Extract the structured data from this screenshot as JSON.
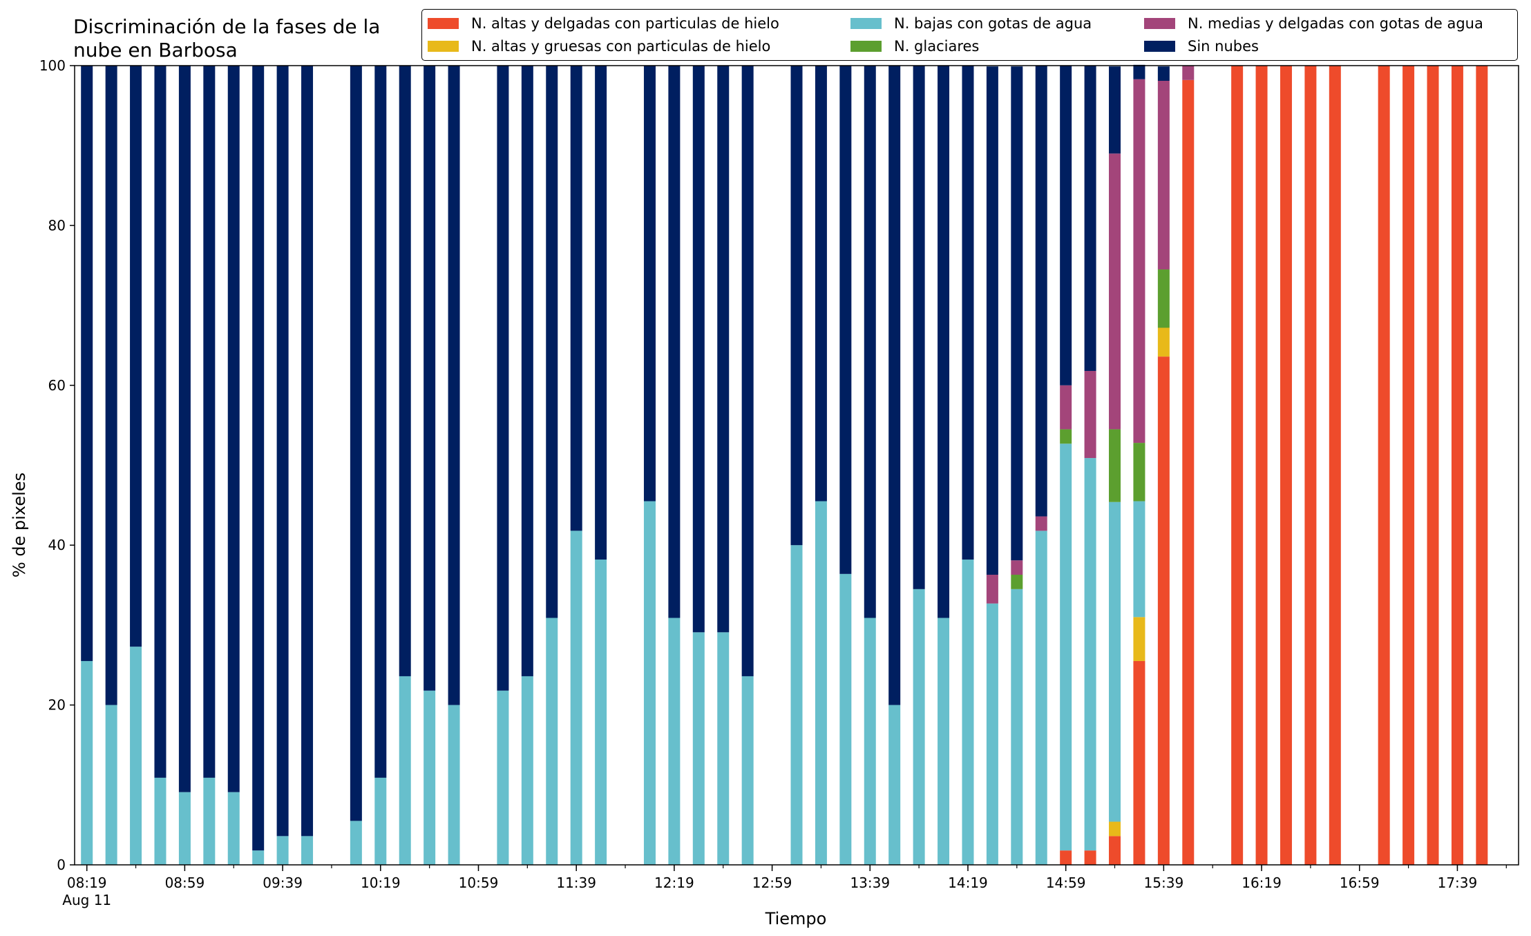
{
  "chart_data": {
    "type": "bar",
    "stacked": true,
    "title": "Discriminación de la fases de la nube en Barbosa",
    "title_lines": [
      "Discriminación de la fases de la",
      "nube en Barbosa"
    ],
    "xlabel": "Tiempo",
    "ylabel": "% de pixeles",
    "ylim": [
      0,
      100
    ],
    "yticks": [
      0,
      20,
      40,
      60,
      80,
      100
    ],
    "x_range": [
      "08:14",
      "18:04"
    ],
    "xticks": [
      "08:19",
      "08:59",
      "09:39",
      "10:19",
      "10:59",
      "11:39",
      "12:19",
      "12:59",
      "13:39",
      "14:19",
      "14:59",
      "15:39",
      "16:19",
      "16:59",
      "17:39"
    ],
    "xtick_sublabel": "Aug 11",
    "grid": false,
    "legend_position": "top-right",
    "categories": [
      "08:19",
      "08:29",
      "08:39",
      "08:49",
      "08:59",
      "09:09",
      "09:19",
      "09:29",
      "09:39",
      "09:49",
      "10:09",
      "10:19",
      "10:29",
      "10:39",
      "10:49",
      "11:09",
      "11:19",
      "11:29",
      "11:39",
      "11:49",
      "12:09",
      "12:19",
      "12:29",
      "12:39",
      "12:49",
      "13:09",
      "13:19",
      "13:29",
      "13:39",
      "13:49",
      "13:59",
      "14:09",
      "14:19",
      "14:29",
      "14:39",
      "14:49",
      "14:59",
      "15:09",
      "15:19",
      "15:29",
      "15:39",
      "15:49",
      "16:09",
      "16:19",
      "16:29",
      "16:39",
      "16:49",
      "17:09",
      "17:19",
      "17:29",
      "17:39",
      "17:49"
    ],
    "series": [
      {
        "name": "N. altas y delgadas con particulas de hielo",
        "color": "#ee4b2b",
        "values": [
          0,
          0,
          0,
          0,
          0,
          0,
          0,
          0,
          0,
          0,
          0,
          0,
          0,
          0,
          0,
          0,
          0,
          0,
          0,
          0,
          0,
          0,
          0,
          0,
          0,
          0,
          0,
          0,
          0,
          0,
          0,
          0,
          0,
          0,
          0,
          0,
          1.8,
          1.8,
          3.6,
          25.5,
          63.6,
          98.2,
          100,
          100,
          100,
          100,
          100,
          100,
          100,
          100,
          100,
          100
        ]
      },
      {
        "name": "N. altas y gruesas con particulas de hielo",
        "color": "#e8b91a",
        "values": [
          0,
          0,
          0,
          0,
          0,
          0,
          0,
          0,
          0,
          0,
          0,
          0,
          0,
          0,
          0,
          0,
          0,
          0,
          0,
          0,
          0,
          0,
          0,
          0,
          0,
          0,
          0,
          0,
          0,
          0,
          0,
          0,
          0,
          0,
          0,
          0,
          0,
          0,
          1.8,
          5.5,
          3.6,
          0,
          0,
          0,
          0,
          0,
          0,
          0,
          0,
          0,
          0,
          0
        ]
      },
      {
        "name": "N. bajas con gotas de agua",
        "color": "#67bfcc",
        "values": [
          25.5,
          20,
          27.3,
          10.9,
          9.1,
          10.9,
          9.1,
          1.8,
          3.6,
          3.6,
          5.5,
          10.9,
          23.6,
          21.8,
          20,
          21.8,
          23.6,
          30.9,
          41.8,
          38.2,
          45.5,
          30.9,
          29.1,
          29.1,
          23.6,
          40,
          45.5,
          36.4,
          30.9,
          20,
          34.5,
          30.9,
          38.2,
          32.7,
          34.5,
          41.8,
          50.9,
          49.1,
          40,
          14.5,
          0,
          0,
          0,
          0,
          0,
          0,
          0,
          0,
          0,
          0,
          0,
          0
        ]
      },
      {
        "name": "N. glaciares",
        "color": "#5c9f2f",
        "values": [
          0,
          0,
          0,
          0,
          0,
          0,
          0,
          0,
          0,
          0,
          0,
          0,
          0,
          0,
          0,
          0,
          0,
          0,
          0,
          0,
          0,
          0,
          0,
          0,
          0,
          0,
          0,
          0,
          0,
          0,
          0,
          0,
          0,
          0,
          1.8,
          0,
          1.8,
          0,
          9.1,
          7.3,
          7.3,
          0,
          0,
          0,
          0,
          0,
          0,
          0,
          0,
          0,
          0,
          0
        ]
      },
      {
        "name": "N. medias y delgadas con gotas de agua",
        "color": "#a3457a",
        "values": [
          0,
          0,
          0,
          0,
          0,
          0,
          0,
          0,
          0,
          0,
          0,
          0,
          0,
          0,
          0,
          0,
          0,
          0,
          0,
          0,
          0,
          0,
          0,
          0,
          0,
          0,
          0,
          0,
          0,
          0,
          0,
          0,
          0,
          3.6,
          1.8,
          1.8,
          5.5,
          10.9,
          34.5,
          45.5,
          23.6,
          1.8,
          0,
          0,
          0,
          0,
          0,
          0,
          0,
          0,
          0,
          0
        ]
      },
      {
        "name": "Sin nubes",
        "color": "#001f60",
        "values": [
          74.5,
          80,
          72.7,
          89.1,
          90.9,
          89.1,
          90.9,
          98.2,
          96.4,
          96.4,
          94.5,
          89.1,
          76.4,
          78.2,
          80,
          78.2,
          76.4,
          69.1,
          58.2,
          61.8,
          54.5,
          69.1,
          70.9,
          70.9,
          76.4,
          60,
          54.5,
          63.6,
          69.1,
          80,
          65.5,
          69.1,
          61.8,
          63.6,
          61.8,
          56.4,
          40,
          38.2,
          10.9,
          1.8,
          1.8,
          0,
          0,
          0,
          0,
          0,
          0,
          0,
          0,
          0,
          0,
          0
        ]
      }
    ]
  }
}
